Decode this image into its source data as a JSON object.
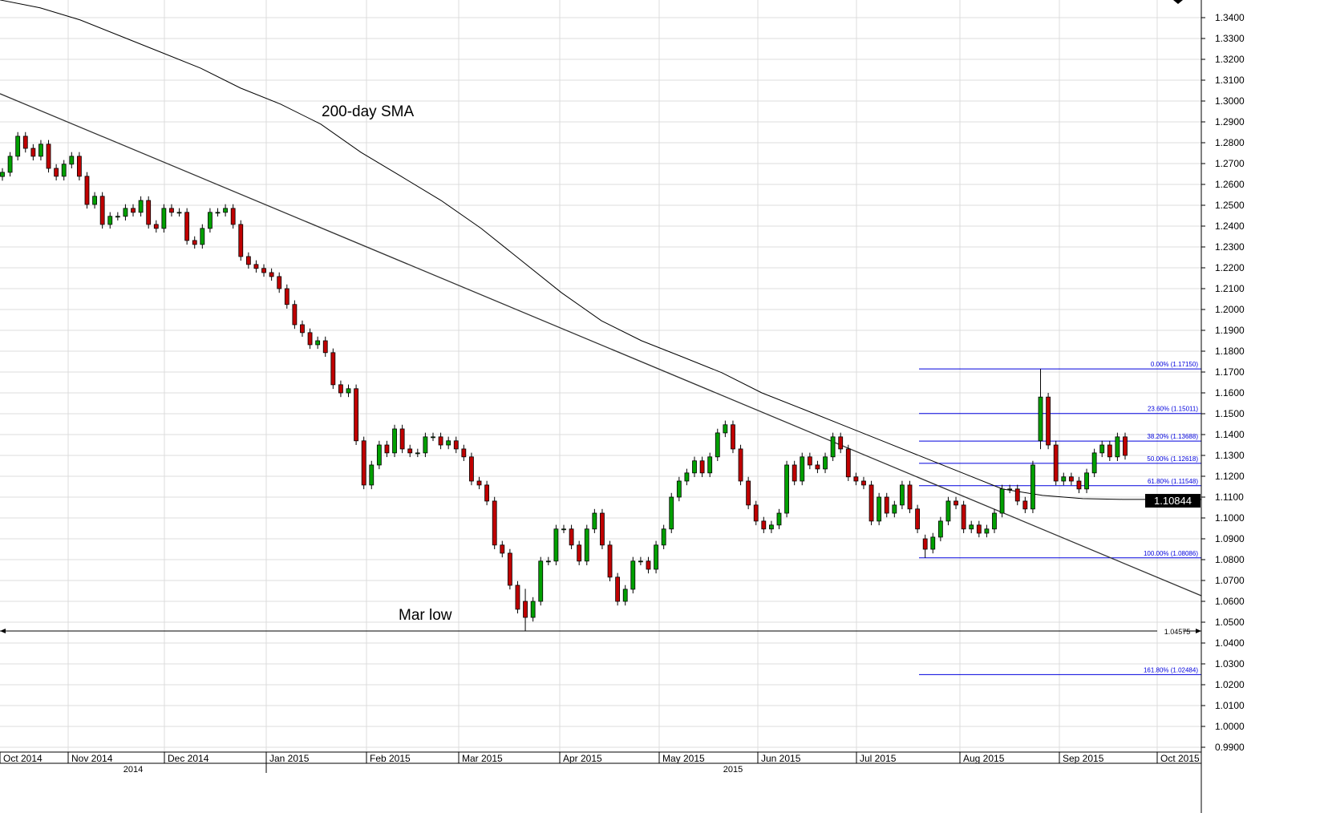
{
  "chart_data": {
    "type": "candlestick",
    "title": "",
    "y_axis": {
      "position": "right",
      "ylim": [
        0.985,
        1.3485
      ],
      "ticks": [
        "1.3400",
        "1.3300",
        "1.3200",
        "1.3100",
        "1.3000",
        "1.2900",
        "1.2800",
        "1.2700",
        "1.2600",
        "1.2500",
        "1.2400",
        "1.2300",
        "1.2200",
        "1.2100",
        "1.2000",
        "1.1900",
        "1.1800",
        "1.1700",
        "1.1600",
        "1.1500",
        "1.1400",
        "1.1300",
        "1.1200",
        "1.1100",
        "1.1000",
        "1.0900",
        "1.0800",
        "1.0700",
        "1.0600",
        "1.0500",
        "1.0400",
        "1.0300",
        "1.0200",
        "1.0100",
        "1.0000",
        "0.9900"
      ]
    },
    "x_axis": {
      "months": [
        "Oct 2014",
        "Nov 2014",
        "Dec 2014",
        "Jan 2015",
        "Feb 2015",
        "Mar 2015",
        "Apr 2015",
        "May 2015",
        "Jun 2015",
        "Jul 2015",
        "Aug 2015",
        "Sep 2015",
        "Oct 2015"
      ],
      "years": [
        "2014",
        "2015"
      ]
    },
    "grid": true,
    "colors": {
      "up": "#00a000",
      "down": "#c00000",
      "fib": "#0000dd",
      "line": "#000000",
      "grid": "#dcdcdc"
    },
    "candles": [
      1.2658,
      1.2735,
      1.2831,
      1.2773,
      1.2735,
      1.2793,
      1.2677,
      1.2639,
      1.2697,
      1.2735,
      1.2639,
      1.2504,
      1.2543,
      1.2408,
      1.2447,
      1.2447,
      1.2485,
      1.2466,
      1.2523,
      1.2408,
      1.2389,
      1.2485,
      1.2466,
      1.2466,
      1.2331,
      1.2312,
      1.2389,
      1.2466,
      1.2466,
      1.2485,
      1.2408,
      1.2254,
      1.2216,
      1.2197,
      1.2177,
      1.2158,
      1.21,
      1.2024,
      1.1927,
      1.1889,
      1.1831,
      1.185,
      1.1793,
      1.1639,
      1.16,
      1.162,
      1.137,
      1.1158,
      1.1254,
      1.135,
      1.1312,
      1.1427,
      1.1331,
      1.1312,
      1.1312,
      1.1389,
      1.1389,
      1.135,
      1.137,
      1.1331,
      1.1293,
      1.1177,
      1.1158,
      1.1081,
      1.087,
      1.0831,
      1.0677,
      1.0562,
      [
        1.06,
        1.066,
        1.0457,
        1.0523
      ],
      1.06,
      1.0793,
      1.0793,
      1.0947,
      1.0947,
      1.087,
      1.0793,
      1.0947,
      1.1023,
      1.087,
      1.0716,
      1.06,
      1.0658,
      1.0793,
      1.0793,
      1.0754,
      1.087,
      1.0947,
      1.11,
      1.1177,
      1.1216,
      1.1274,
      1.1216,
      1.1293,
      1.1408,
      1.1447,
      1.1331,
      1.1177,
      1.1062,
      1.0985,
      1.0947,
      1.0966,
      1.1023,
      1.1254,
      1.1177,
      1.1293,
      1.1254,
      1.1235,
      1.1293,
      1.1389,
      1.1331,
      1.1197,
      1.1177,
      1.1158,
      1.0985,
      1.11,
      1.1023,
      1.1062,
      1.1158,
      1.1043,
      1.0947,
      [
        1.09,
        1.092,
        1.0809,
        1.085
      ],
      1.0908,
      1.0985,
      1.1081,
      1.1062,
      1.0947,
      1.0966,
      1.0927,
      1.0947,
      1.1023,
      1.1139,
      1.1139,
      1.1081,
      1.1043,
      1.1254,
      [
        1.137,
        1.1715,
        1.133,
        1.158
      ],
      1.135,
      1.1177,
      1.1197,
      1.1177,
      1.1139,
      1.1216,
      1.1312,
      1.135,
      1.1293,
      1.1389,
      1.13
    ],
    "sma_200": {
      "label": "200-day SMA",
      "values": [
        1.3485,
        1.3447,
        1.3389,
        1.3312,
        1.3235,
        1.3158,
        1.3062,
        1.2985,
        1.2889,
        1.2754,
        1.2639,
        1.2523,
        1.2389,
        1.2235,
        1.2081,
        1.1946,
        1.185,
        1.1774,
        1.1697,
        1.16,
        1.1524,
        1.1447,
        1.137,
        1.1293,
        1.1216,
        1.1139,
        1.1108,
        1.1093,
        1.1089
      ]
    },
    "trendline": {
      "start": 1.3035,
      "end": 1.0627
    },
    "mar_low": {
      "label": "Mar low",
      "value": 1.04575,
      "value_label": "1.04575"
    },
    "fibonacci": [
      {
        "label": "0.00% (1.17150)",
        "value": 1.1715
      },
      {
        "label": "23.60% (1.15011)",
        "value": 1.15011
      },
      {
        "label": "38.20% (1.13688)",
        "value": 1.13688
      },
      {
        "label": "50.00% (1.12618)",
        "value": 1.12618
      },
      {
        "label": "61.80% (1.11548)",
        "value": 1.11548
      },
      {
        "label": "100.00% (1.08086)",
        "value": 1.08086
      },
      {
        "label": "161.80% (1.02484)",
        "value": 1.02484
      }
    ],
    "current_price": {
      "value": 1.10844,
      "label": "1.10844"
    }
  }
}
